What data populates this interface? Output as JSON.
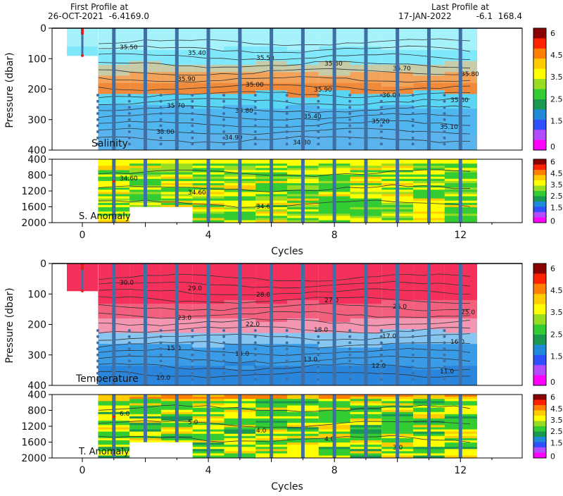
{
  "header": {
    "first_title": "First Profile at",
    "first_date": "26-OCT-2021",
    "first_lat": "-6.4",
    "first_lon": "169.0",
    "last_title": "Last Profile at",
    "last_date": "17-JAN-2022",
    "last_lat": "-6.1",
    "last_lon": "168.4"
  },
  "colors": {
    "profile_line": "#3f6fa5",
    "first_profile": "#e02020",
    "salinity_scale": [
      "#a6f2fb",
      "#7fe8fa",
      "#5ad6f5",
      "#c8cba8",
      "#f3a25a",
      "#f08a3a",
      "#4fb6f0",
      "#3a98e6",
      "#5ab3ec"
    ],
    "temperature_scale": [
      "#f5305a",
      "#f2607e",
      "#f296b2",
      "#86c6f0",
      "#3a9ce6",
      "#2a86dd"
    ],
    "anomaly_scale": [
      "#ff00ff",
      "#b24cff",
      "#3050ff",
      "#1e8ad8",
      "#1a9850",
      "#33cc33",
      "#99dd22",
      "#ffff00",
      "#ffcc00",
      "#ff8000",
      "#ff2200",
      "#8b0000"
    ]
  },
  "chart_data": [
    {
      "type": "heatmap",
      "title": "Salinity",
      "ylabel": "Pressure (dbar)",
      "xlim": [
        -1,
        14
      ],
      "ylim": [
        400,
        0
      ],
      "yticks": [
        "0",
        "100",
        "200",
        "300",
        "400"
      ],
      "contour_labels": [
        "35.50",
        "35.40",
        "35.50",
        "35.60",
        "35.70",
        "35.80",
        "35.90",
        "35.00",
        "35.90",
        "36.00",
        "35.60",
        "35.70",
        "35.80",
        "35.40",
        "35.20",
        "35.10",
        "35.00",
        "34.90",
        "34.80"
      ],
      "grid": false
    },
    {
      "type": "heatmap",
      "title": "S. Anomaly",
      "xlabel": "Cycles",
      "xlim": [
        -1,
        14
      ],
      "ylim": [
        2000,
        400
      ],
      "xticks": [
        "0",
        "4",
        "8",
        "12"
      ],
      "yticks": [
        "400",
        "800",
        "1200",
        "1600",
        "2000"
      ],
      "contour_labels": [
        "34.60",
        "34.60",
        "34.6"
      ],
      "colorbar_ticks": [
        "6",
        "4.5",
        "3.5",
        "2.5",
        "1.5",
        "0"
      ]
    },
    {
      "type": "heatmap",
      "title": "Temperature",
      "ylabel": "Pressure (dbar)",
      "xlim": [
        -1,
        14
      ],
      "ylim": [
        400,
        0
      ],
      "yticks": [
        "0",
        "100",
        "200",
        "300",
        "400"
      ],
      "contour_labels": [
        "30.0",
        "29.0",
        "28.0",
        "27.0",
        "26.0",
        "25.0",
        "23.0",
        "22.0",
        "18.0",
        "17.0",
        "16.0",
        "15.0",
        "14.0",
        "13.0",
        "12.0",
        "11.0",
        "10.0"
      ]
    },
    {
      "type": "heatmap",
      "title": "T. Anomaly",
      "xlabel": "Cycles",
      "xlim": [
        -1,
        14
      ],
      "ylim": [
        2000,
        400
      ],
      "xticks": [
        "0",
        "4",
        "8",
        "12"
      ],
      "yticks": [
        "400",
        "800",
        "1200",
        "1600",
        "2000"
      ],
      "contour_labels": [
        "6.0",
        "5.0",
        "4.0",
        "4.0",
        "3.0"
      ],
      "colorbar_ticks": [
        "6",
        "4.5",
        "3.5",
        "2.5",
        "1.5",
        "0"
      ]
    }
  ],
  "cycles": [
    0,
    1,
    2,
    3,
    4,
    5,
    6,
    7,
    8,
    9,
    10,
    11,
    12
  ],
  "profile_depths": [
    90,
    2000,
    1600,
    1600,
    2000,
    2000,
    2000,
    2000,
    2000,
    2000,
    2000,
    2000,
    2000
  ]
}
